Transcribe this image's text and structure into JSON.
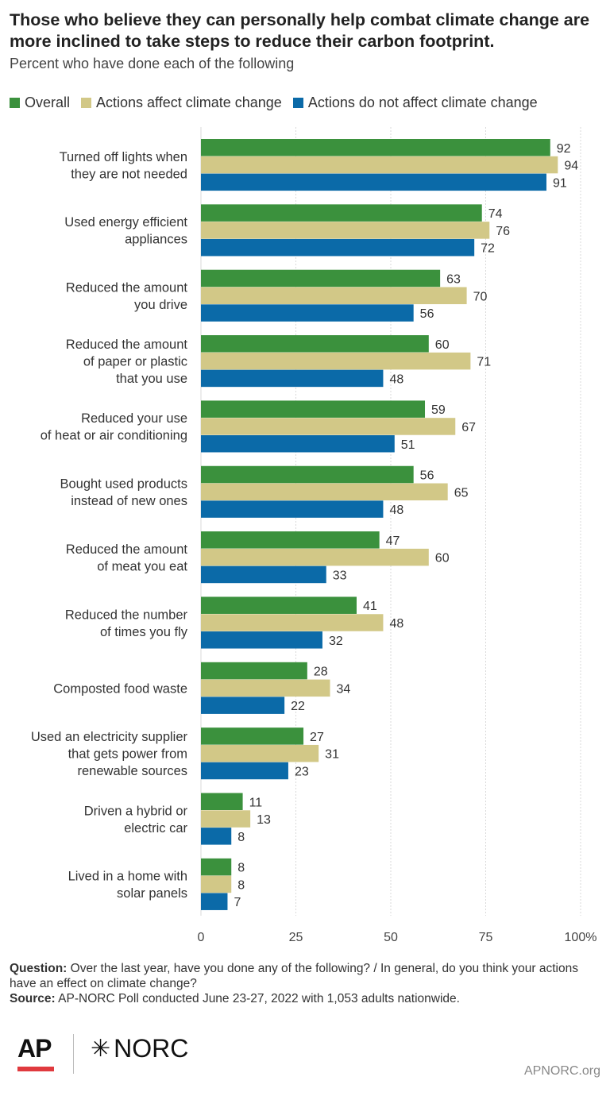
{
  "header": {
    "title": "Those who believe they can personally help combat climate change are more inclined to take steps to reduce their carbon footprint.",
    "subtitle": "Percent who have done each of the following"
  },
  "legend": [
    {
      "label": "Overall",
      "color": "#3b913d"
    },
    {
      "label": "Actions affect climate change",
      "color": "#d2c887"
    },
    {
      "label": "Actions do not affect climate change",
      "color": "#0b6aa8"
    }
  ],
  "chart_data": {
    "type": "bar",
    "orientation": "horizontal",
    "categories": [
      [
        "Turned off lights when",
        "they are not needed"
      ],
      [
        "Used energy efficient",
        "appliances"
      ],
      [
        "Reduced the amount",
        "you drive"
      ],
      [
        "Reduced the amount",
        "of paper or plastic",
        "that you use"
      ],
      [
        "Reduced your use",
        "of heat or air conditioning"
      ],
      [
        "Bought used products",
        "instead of new ones"
      ],
      [
        "Reduced the amount",
        "of meat you eat"
      ],
      [
        "Reduced the number",
        "of times you fly"
      ],
      [
        "Composted food waste"
      ],
      [
        "Used an electricity supplier",
        "that gets power from",
        "renewable sources"
      ],
      [
        "Driven a hybrid or",
        "electric car"
      ],
      [
        "Lived in a home with",
        "solar panels"
      ]
    ],
    "series": [
      {
        "name": "Overall",
        "color": "#3b913d",
        "values": [
          92,
          74,
          63,
          60,
          59,
          56,
          47,
          41,
          28,
          27,
          11,
          8
        ]
      },
      {
        "name": "Actions affect climate change",
        "color": "#d2c887",
        "values": [
          94,
          76,
          70,
          71,
          67,
          65,
          60,
          48,
          34,
          31,
          13,
          8
        ]
      },
      {
        "name": "Actions do not affect climate change",
        "color": "#0b6aa8",
        "values": [
          91,
          72,
          56,
          48,
          51,
          48,
          33,
          32,
          22,
          23,
          8,
          7
        ]
      }
    ],
    "xlim": [
      0,
      100
    ],
    "ticks": [
      0,
      25,
      50,
      75,
      100
    ],
    "tick_labels": [
      "0",
      "25",
      "50",
      "75",
      "100%"
    ],
    "grid": true
  },
  "notes": {
    "question_label": "Question:",
    "question_text": " Over the last year, have you done any of the following? / In general, do you think your actions have an effect on climate change?",
    "source_label": "Source:",
    "source_text": " AP-NORC Poll conducted June 23-27, 2022 with 1,053 adults nationwide."
  },
  "footer": {
    "logo_ap": "AP",
    "logo_norc_mark": "✳",
    "logo_norc": "NORC",
    "site": "APNORC.org"
  }
}
